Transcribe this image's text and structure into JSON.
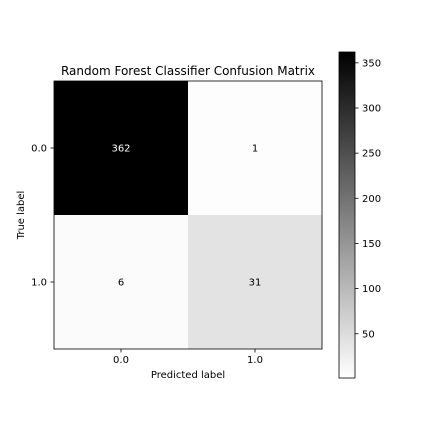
{
  "chart_data": {
    "type": "heatmap",
    "title": "Random Forest Classifier Confusion Matrix",
    "xlabel": "Predicted label",
    "ylabel": "True label",
    "x_categories": [
      "0.0",
      "1.0"
    ],
    "y_categories": [
      "0.0",
      "1.0"
    ],
    "matrix": [
      [
        362,
        1
      ],
      [
        6,
        31
      ]
    ],
    "colormap": "greys",
    "color_range": [
      1,
      362
    ],
    "colorbar_ticks": [
      50,
      100,
      150,
      200,
      250,
      300,
      350
    ],
    "colorbar_tick_labels": [
      "50",
      "100",
      "150",
      "200",
      "250",
      "300",
      "350"
    ]
  }
}
